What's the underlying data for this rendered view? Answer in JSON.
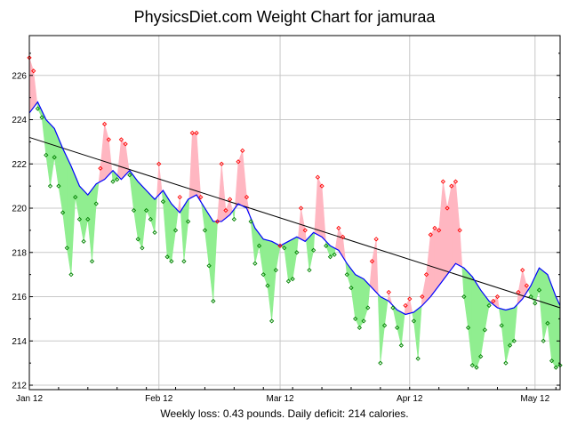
{
  "chart_data": {
    "type": "line",
    "title": "PhysicsDiet.com Weight Chart for jamuraa",
    "footer": "Weekly loss: 0.43 pounds. Daily deficit: 214 calories.",
    "xlabel": "",
    "ylabel": "",
    "x_tick_labels": [
      "Jan 12",
      "Feb 12",
      "Mar 12",
      "Apr 12",
      "May 12"
    ],
    "x_tick_days": [
      0,
      31,
      60,
      91,
      121
    ],
    "x_range_days": [
      0,
      127
    ],
    "y_ticks": [
      212,
      214,
      216,
      218,
      220,
      222,
      224,
      226
    ],
    "ylim": [
      211.8,
      227.8
    ],
    "grid": true,
    "colors": {
      "trend": "#0000ff",
      "regression": "#000000",
      "above_trend_fill": "#ffb6c1",
      "below_trend_fill": "#90ee90",
      "above_marker": "#ff0000",
      "below_marker": "#008000"
    },
    "series": [
      {
        "name": "weight",
        "x": [
          0,
          1,
          2,
          3,
          4,
          5,
          6,
          7,
          8,
          9,
          10,
          11,
          12,
          13,
          14,
          15,
          16,
          17,
          18,
          19,
          20,
          21,
          22,
          23,
          24,
          25,
          26,
          27,
          28,
          29,
          30,
          31,
          32,
          33,
          34,
          35,
          36,
          37,
          38,
          39,
          40,
          41,
          42,
          43,
          44,
          45,
          46,
          47,
          48,
          49,
          50,
          51,
          52,
          53,
          54,
          55,
          56,
          57,
          58,
          59,
          60,
          61,
          62,
          63,
          64,
          65,
          66,
          67,
          68,
          69,
          70,
          71,
          72,
          73,
          74,
          75,
          76,
          77,
          78,
          79,
          80,
          81,
          82,
          83,
          84,
          85,
          86,
          87,
          88,
          89,
          90,
          91,
          92,
          93,
          94,
          95,
          96,
          97,
          98,
          99,
          100,
          101,
          102,
          103,
          104,
          105,
          106,
          107,
          108,
          109,
          110,
          111,
          112,
          113,
          114,
          115,
          116,
          117,
          118,
          119,
          120,
          121,
          122,
          123,
          124,
          125,
          126,
          127
        ],
        "values": [
          226.8,
          226.2,
          224.5,
          224.1,
          222.4,
          221.0,
          222.3,
          221.0,
          219.8,
          218.2,
          217.0,
          220.5,
          219.5,
          218.5,
          219.5,
          217.6,
          220.2,
          221.8,
          223.8,
          223.1,
          221.2,
          221.3,
          223.1,
          222.9,
          221.5,
          219.9,
          218.6,
          218.2,
          219.9,
          219.5,
          218.9,
          222.0,
          220.3,
          217.8,
          217.6,
          219.0,
          220.5,
          217.6,
          219.4,
          223.4,
          223.4,
          220.5,
          219.0,
          217.4,
          215.8,
          219.4,
          222.0,
          219.9,
          220.4,
          219.5,
          222.1,
          222.6,
          220.5,
          219.4,
          217.5,
          218.3,
          217.0,
          216.5,
          214.9,
          217.2,
          218.3,
          218.2,
          216.7,
          216.8,
          218.0,
          220.0,
          219.0,
          217.2,
          218.1,
          221.4,
          221.0,
          218.3,
          217.8,
          217.9,
          219.1,
          218.7,
          217.0,
          216.4,
          215.0,
          214.6,
          214.9,
          215.5,
          217.6,
          218.6,
          213.0,
          214.7,
          216.2,
          215.5,
          214.6,
          213.8,
          215.6,
          215.9,
          214.9,
          213.2,
          216.0,
          217.0,
          218.8,
          219.1,
          219.0,
          221.2,
          220.0,
          221.0,
          221.2,
          219.0,
          216.0,
          214.6,
          212.9,
          212.8,
          213.3,
          214.5,
          215.6,
          215.8,
          216.0,
          214.7,
          213.0,
          213.8,
          214.0,
          216.2,
          217.2,
          216.5,
          216.0,
          215.7,
          216.3,
          214.0,
          214.8,
          213.1,
          212.8,
          212.9
        ]
      },
      {
        "name": "trend",
        "x": [
          0,
          2,
          4,
          6,
          8,
          10,
          12,
          14,
          16,
          18,
          20,
          22,
          24,
          26,
          28,
          30,
          32,
          34,
          36,
          38,
          40,
          42,
          44,
          46,
          48,
          50,
          52,
          54,
          56,
          58,
          60,
          62,
          64,
          66,
          68,
          70,
          72,
          74,
          76,
          78,
          80,
          82,
          84,
          86,
          88,
          90,
          92,
          94,
          96,
          98,
          100,
          102,
          104,
          106,
          108,
          110,
          112,
          114,
          116,
          118,
          120,
          122,
          124,
          126,
          127
        ],
        "values": [
          224.3,
          224.8,
          224.0,
          223.6,
          222.7,
          221.9,
          221.0,
          220.6,
          221.1,
          221.3,
          221.7,
          221.3,
          221.7,
          221.2,
          220.8,
          220.4,
          220.8,
          220.2,
          219.8,
          220.4,
          220.6,
          220.0,
          219.4,
          219.4,
          219.7,
          220.2,
          220.0,
          219.1,
          218.6,
          218.5,
          218.3,
          218.5,
          218.7,
          218.5,
          218.9,
          218.7,
          218.3,
          218.1,
          217.5,
          217.0,
          216.8,
          216.4,
          216.0,
          215.8,
          215.4,
          215.2,
          215.3,
          215.6,
          216.0,
          216.5,
          217.0,
          217.5,
          217.3,
          216.9,
          216.3,
          215.8,
          215.5,
          215.4,
          215.5,
          215.9,
          216.5,
          217.3,
          217.0,
          216.0,
          215.6
        ]
      },
      {
        "name": "regression",
        "x": [
          0,
          127
        ],
        "values": [
          223.2,
          215.5
        ]
      }
    ]
  }
}
